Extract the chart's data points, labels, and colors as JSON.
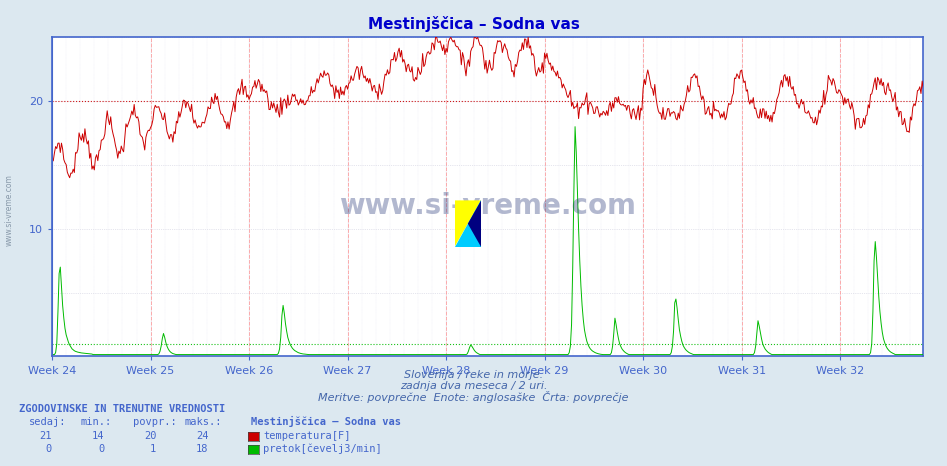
{
  "title": "Mestinjščica – Sodna vas",
  "title_color": "#0000cc",
  "bg_color": "#dce8f0",
  "plot_bg_color": "#ffffff",
  "x_weeks": [
    "Week 24",
    "Week 25",
    "Week 26",
    "Week 27",
    "Week 28",
    "Week 29",
    "Week 30",
    "Week 31",
    "Week 32"
  ],
  "ylim": [
    0,
    25
  ],
  "yticks": [
    10,
    20
  ],
  "temp_color": "#cc0000",
  "flow_color": "#00bb00",
  "temp_avg_line": 20,
  "flow_avg_line": 1,
  "axis_color": "#4466cc",
  "grid_color": "#ccccdd",
  "vline_color": "#ff6666",
  "watermark": "www.si-vreme.com",
  "watermark_color": "#1a2a7044",
  "subtitle1": "Slovenija / reke in morje.",
  "subtitle2": "zadnja dva meseca / 2 uri.",
  "subtitle3": "Meritve: povprečne  Enote: anglosaške  Črta: povprečje",
  "table_header": "ZGODOVINSKE IN TRENUTNE VREDNOSTI",
  "col_headers": [
    "sedaj:",
    "min.:",
    "povpr.:",
    "maks.:"
  ],
  "row1_vals": [
    "21",
    "14",
    "20",
    "24"
  ],
  "row2_vals": [
    "0",
    "0",
    "1",
    "18"
  ],
  "legend_title": "Mestinjščica – Sodna vas",
  "legend1": "temperatura[F]",
  "legend2": "pretok[čevelj3/min]",
  "n_points": 744,
  "week_starts": [
    0,
    84,
    168,
    252,
    336,
    420,
    504,
    588,
    672
  ]
}
